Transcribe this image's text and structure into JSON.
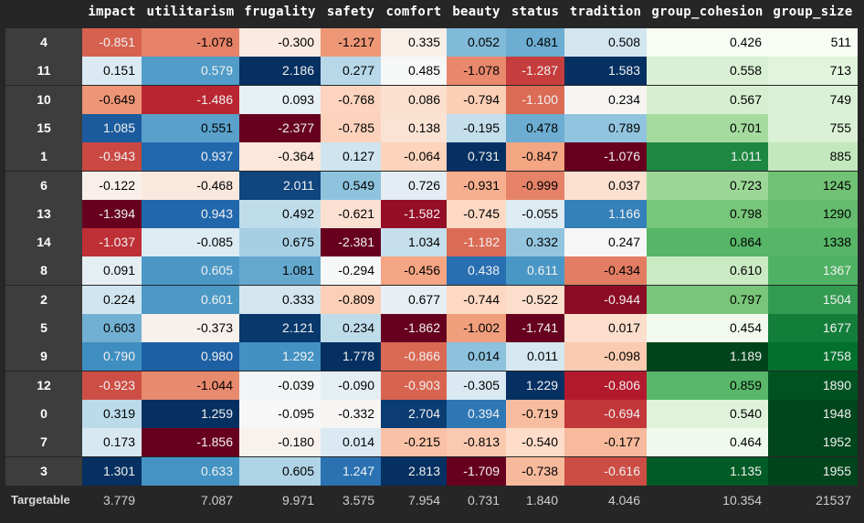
{
  "table": {
    "columns": [
      "impact",
      "utilitarism",
      "frugality",
      "safety",
      "comfort",
      "beauty",
      "status",
      "tradition",
      "group_cohesion",
      "group_size"
    ],
    "row_labels": [
      "4",
      "11",
      "10",
      "15",
      "1",
      "6",
      "13",
      "14",
      "8",
      "2",
      "5",
      "9",
      "12",
      "0",
      "7",
      "3"
    ],
    "rows": [
      [
        "-0.851",
        "-1.078",
        "-0.300",
        "-1.217",
        "0.335",
        "0.052",
        "0.481",
        "0.508",
        "0.426",
        "511"
      ],
      [
        "0.151",
        "0.579",
        "2.186",
        "0.277",
        "0.485",
        "-1.078",
        "-1.287",
        "1.583",
        "0.558",
        "713"
      ],
      [
        "-0.649",
        "-1.486",
        "0.093",
        "-0.768",
        "0.086",
        "-0.794",
        "-1.100",
        "0.234",
        "0.567",
        "749"
      ],
      [
        "1.085",
        "0.551",
        "-2.377",
        "-0.785",
        "0.138",
        "-0.195",
        "0.478",
        "0.789",
        "0.701",
        "755"
      ],
      [
        "-0.943",
        "0.937",
        "-0.364",
        "0.127",
        "-0.064",
        "0.731",
        "-0.847",
        "-1.076",
        "1.011",
        "885"
      ],
      [
        "-0.122",
        "-0.468",
        "2.011",
        "0.549",
        "0.726",
        "-0.931",
        "-0.999",
        "0.037",
        "0.723",
        "1245"
      ],
      [
        "-1.394",
        "0.943",
        "0.492",
        "-0.621",
        "-1.582",
        "-0.745",
        "-0.055",
        "1.166",
        "0.798",
        "1290"
      ],
      [
        "-1.037",
        "-0.085",
        "0.675",
        "-2.381",
        "1.034",
        "-1.182",
        "0.332",
        "0.247",
        "0.864",
        "1338"
      ],
      [
        "0.091",
        "0.605",
        "1.081",
        "-0.294",
        "-0.456",
        "0.438",
        "0.611",
        "-0.434",
        "0.610",
        "1367"
      ],
      [
        "0.224",
        "0.601",
        "0.333",
        "-0.809",
        "0.677",
        "-0.744",
        "-0.522",
        "-0.944",
        "0.797",
        "1504"
      ],
      [
        "0.603",
        "-0.373",
        "2.121",
        "0.234",
        "-1.862",
        "-1.002",
        "-1.741",
        "0.017",
        "0.454",
        "1677"
      ],
      [
        "0.790",
        "0.980",
        "1.292",
        "1.778",
        "-0.866",
        "0.014",
        "0.011",
        "-0.098",
        "1.189",
        "1758"
      ],
      [
        "-0.923",
        "-1.044",
        "-0.039",
        "-0.090",
        "-0.903",
        "-0.305",
        "1.229",
        "-0.806",
        "0.859",
        "1890"
      ],
      [
        "0.319",
        "1.259",
        "-0.095",
        "-0.332",
        "2.704",
        "0.394",
        "-0.719",
        "-0.694",
        "0.540",
        "1948"
      ],
      [
        "0.173",
        "-1.856",
        "-0.180",
        "0.014",
        "-0.215",
        "-0.813",
        "-0.540",
        "-0.177",
        "0.464",
        "1952"
      ],
      [
        "1.301",
        "0.633",
        "0.605",
        "1.247",
        "2.813",
        "-1.709",
        "-0.738",
        "-0.616",
        "1.135",
        "1955"
      ]
    ],
    "target_row": {
      "label": "Targetable",
      "values": [
        "3.779",
        "7.087",
        "9.971",
        "3.575",
        "7.954",
        "0.731",
        "1.840",
        "4.046",
        "10.354",
        "21537"
      ]
    }
  },
  "colors": {
    "page_bg": "#262626",
    "index_bg": "#3d3d3d",
    "diverging_colormap": "RdBu",
    "sequential_colormap": "Greens"
  }
}
